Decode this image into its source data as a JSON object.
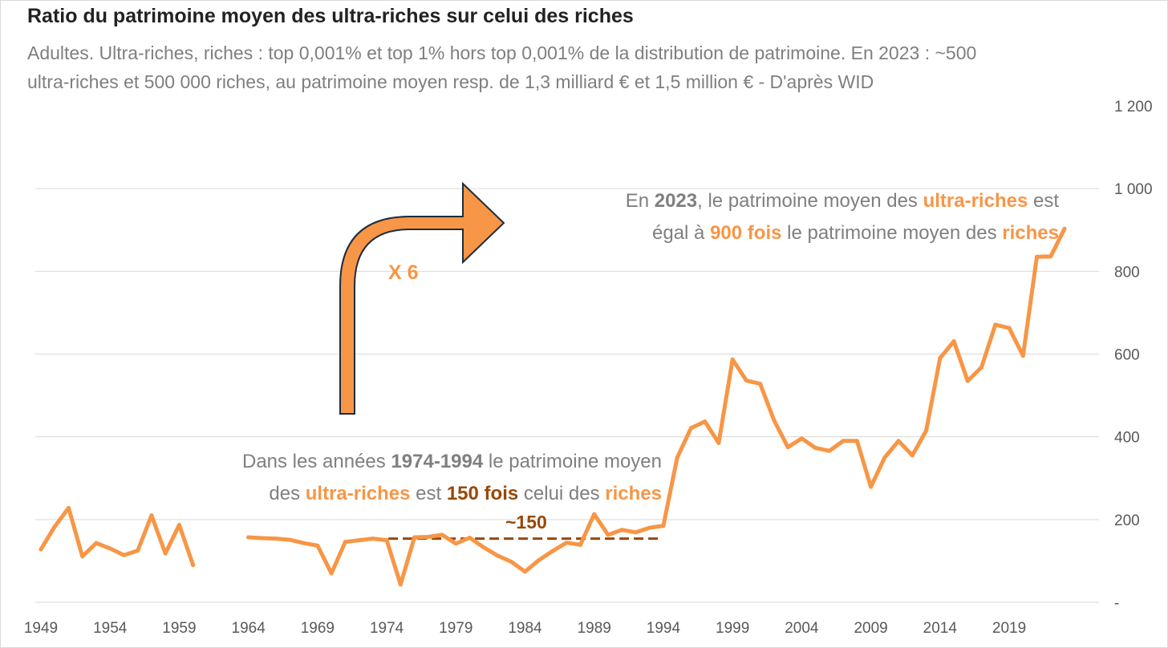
{
  "colors": {
    "series": "#f79646",
    "brown": "#984807",
    "gray_text": "#7f7f7f",
    "arrow_fill": "#f79646",
    "arrow_stroke": "#1f2d3d",
    "grid": "#d9d9d9"
  },
  "chart_data": {
    "type": "line",
    "title": "Ratio du patrimoine moyen des ultra-riches sur celui des riches",
    "subtitle_line1": "Adultes. Ultra-riches, riches : top 0,001% et top 1% hors top 0,001% de la distribution de patrimoine. En 2023 : ~500",
    "subtitle_line2": "ultra-riches et 500 000 riches, au patrimoine moyen resp. de 1,3 milliard € et 1,5 million €  - D'après WID",
    "xlabel": "",
    "ylabel": "",
    "xlim": [
      1949,
      2023
    ],
    "ylim": [
      0,
      1200
    ],
    "x_ticks": [
      "1949",
      "1954",
      "1959",
      "1964",
      "1969",
      "1974",
      "1979",
      "1984",
      "1989",
      "1994",
      "1999",
      "2004",
      "2009",
      "2014",
      "2019"
    ],
    "y_ticks": [
      {
        "value": 0,
        "label": "-"
      },
      {
        "value": 200,
        "label": "200"
      },
      {
        "value": 400,
        "label": "400"
      },
      {
        "value": 600,
        "label": "600"
      },
      {
        "value": 800,
        "label": "800"
      },
      {
        "value": 1000,
        "label": "1 000"
      },
      {
        "value": 1200,
        "label": "1 200"
      }
    ],
    "series": [
      {
        "name": "Ratio ultra-riches / riches (1949-1960)",
        "x": [
          1949,
          1950,
          1951,
          1952,
          1953,
          1954,
          1955,
          1956,
          1957,
          1958,
          1959,
          1960
        ],
        "values": [
          128,
          183,
          228,
          111,
          143,
          130,
          114,
          125,
          210,
          118,
          187,
          90
        ]
      },
      {
        "name": "Ratio ultra-riches / riches (1964-2023)",
        "x": [
          1964,
          1965,
          1966,
          1967,
          1968,
          1969,
          1970,
          1971,
          1972,
          1973,
          1974,
          1975,
          1976,
          1977,
          1978,
          1979,
          1980,
          1981,
          1982,
          1983,
          1984,
          1985,
          1986,
          1987,
          1988,
          1989,
          1990,
          1991,
          1992,
          1993,
          1994,
          1995,
          1996,
          1997,
          1998,
          1999,
          2000,
          2001,
          2002,
          2003,
          2004,
          2005,
          2006,
          2007,
          2008,
          2009,
          2010,
          2011,
          2012,
          2013,
          2014,
          2015,
          2016,
          2017,
          2018,
          2019,
          2020,
          2021,
          2022,
          2023
        ],
        "values": [
          157,
          155,
          154,
          151,
          143,
          137,
          70,
          146,
          150,
          154,
          150,
          43,
          157,
          158,
          163,
          142,
          156,
          133,
          113,
          98,
          74,
          102,
          124,
          144,
          139,
          213,
          163,
          175,
          169,
          180,
          185,
          350,
          421,
          437,
          385,
          587,
          536,
          528,
          440,
          375,
          396,
          373,
          366,
          390,
          390,
          279,
          350,
          390,
          355,
          415,
          590,
          631,
          535,
          568,
          671,
          663,
          596,
          835,
          836,
          903
        ]
      }
    ],
    "reference_line": {
      "label": "~150",
      "value": 150,
      "x_start": 1974,
      "x_end": 1994
    },
    "annotations": {
      "note_2023": {
        "line1": {
          "t1": "En ",
          "b1": "2023",
          "t2": ", le patrimoine moyen des ",
          "b2": "ultra-riches",
          "t3": " est"
        },
        "line2": {
          "t1": "égal à ",
          "b1": "900 fois",
          "t2": " le patrimoine moyen des ",
          "b2": "riches"
        }
      },
      "note_1974": {
        "line1": {
          "t1": "Dans les années ",
          "b1": "1974-1994",
          "t2": " le patrimoine moyen"
        },
        "line2": {
          "t1": "des ",
          "b1": "ultra-riches",
          "t2": " est ",
          "b2": "150 fois",
          "t3": " celui des ",
          "b3": "riches"
        }
      },
      "arrow_label": "X 6",
      "arrow_icon": "turn-right-arrow-icon"
    },
    "grid": true,
    "legend": "none"
  }
}
